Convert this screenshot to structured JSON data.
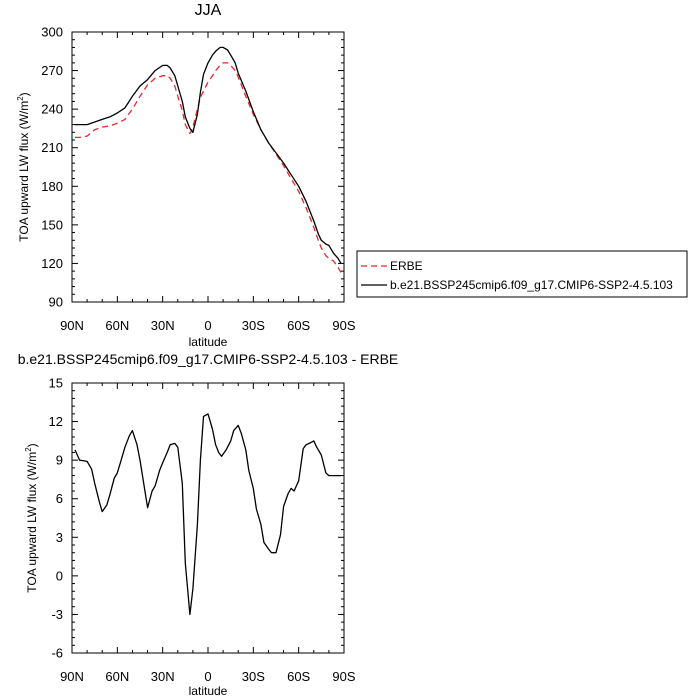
{
  "chart_data": [
    {
      "type": "line",
      "title": "JJA",
      "xlabel": "latitude",
      "ylabel_main": "TOA upward LW flux (W/m",
      "ylabel_sup": "2",
      "ylabel_close": ")",
      "xlim": [
        90,
        -90
      ],
      "ylim": [
        90,
        300
      ],
      "x_ticks": [
        90,
        60,
        30,
        0,
        -30,
        -60,
        -90
      ],
      "x_tick_labels": [
        "90N",
        "60N",
        "30N",
        "0",
        "30S",
        "60S",
        "90S"
      ],
      "y_ticks": [
        90,
        120,
        150,
        180,
        210,
        240,
        270,
        300
      ],
      "y_tick_labels": [
        "90",
        "120",
        "150",
        "180",
        "210",
        "240",
        "270",
        "300"
      ],
      "legend_position": "right",
      "series": [
        {
          "name": "ERBE",
          "color": "#e8272a",
          "dash": "dashed",
          "x": [
            88,
            85,
            80,
            75,
            70,
            65,
            60,
            55,
            50,
            45,
            40,
            35,
            30,
            27,
            25,
            22,
            20,
            17,
            15,
            12,
            10,
            7,
            5,
            3,
            0,
            -3,
            -5,
            -8,
            -10,
            -13,
            -15,
            -18,
            -20,
            -25,
            -30,
            -35,
            -40,
            -45,
            -50,
            -55,
            -60,
            -65,
            -70,
            -73,
            -75,
            -78,
            -80,
            -83,
            -86,
            -88
          ],
          "y": [
            218,
            218,
            219,
            224,
            226,
            227,
            229,
            232,
            240,
            250,
            259,
            264,
            266,
            266,
            264,
            258,
            250,
            239,
            228,
            221,
            226,
            240,
            249,
            254,
            261,
            266,
            270,
            274,
            276,
            276,
            274,
            270,
            265,
            250,
            236,
            224,
            214,
            205,
            196,
            186,
            176,
            163,
            148,
            138,
            132,
            126,
            124,
            122,
            117,
            113
          ]
        },
        {
          "name": "b.e21.BSSP245cmip6.f09_g17.CMIP6-SSP2-4.5.103",
          "color": "#000000",
          "dash": "solid",
          "x": [
            88,
            85,
            80,
            75,
            70,
            65,
            60,
            55,
            50,
            45,
            40,
            35,
            30,
            27,
            25,
            22,
            20,
            17,
            15,
            12,
            10,
            7,
            5,
            3,
            0,
            -3,
            -5,
            -8,
            -10,
            -13,
            -15,
            -18,
            -20,
            -25,
            -30,
            -35,
            -40,
            -45,
            -50,
            -55,
            -60,
            -65,
            -70,
            -73,
            -75,
            -78,
            -80,
            -83,
            -86,
            -88
          ],
          "y": [
            228,
            228,
            228,
            230,
            232,
            234,
            237,
            241,
            250,
            258,
            263,
            270,
            274,
            274,
            272,
            266,
            258,
            246,
            234,
            225,
            222,
            236,
            253,
            267,
            276,
            282,
            285,
            288,
            288,
            286,
            282,
            276,
            268,
            254,
            238,
            224,
            214,
            206,
            198,
            189,
            180,
            168,
            153,
            143,
            138,
            135,
            134,
            128,
            124,
            120
          ]
        }
      ]
    },
    {
      "type": "line",
      "title": "b.e21.BSSP245cmip6.f09_g17.CMIP6-SSP2-4.5.103 - ERBE",
      "xlabel": "latitude",
      "ylabel_main": "TOA upward LW flux (W/m",
      "ylabel_sup": "2",
      "ylabel_close": ")",
      "xlim": [
        90,
        -90
      ],
      "ylim": [
        -6,
        15
      ],
      "x_ticks": [
        90,
        60,
        30,
        0,
        -30,
        -60,
        -90
      ],
      "x_tick_labels": [
        "90N",
        "60N",
        "30N",
        "0",
        "30S",
        "60S",
        "90S"
      ],
      "y_ticks": [
        -6,
        -3,
        0,
        3,
        6,
        9,
        12,
        15
      ],
      "y_tick_labels": [
        "-6",
        "-3",
        "0",
        "3",
        "6",
        "9",
        "12",
        "15"
      ],
      "series": [
        {
          "color": "#000000",
          "dash": "solid",
          "x": [
            88,
            85,
            80,
            77,
            75,
            72,
            70,
            67,
            65,
            62,
            60,
            57,
            55,
            52,
            50,
            47,
            45,
            42,
            40,
            37,
            35,
            32,
            30,
            27,
            25,
            22,
            20,
            17,
            15,
            12,
            10,
            7,
            5,
            3,
            0,
            -3,
            -5,
            -7,
            -9,
            -12,
            -15,
            -17,
            -20,
            -22,
            -25,
            -27,
            -30,
            -32,
            -35,
            -37,
            -40,
            -42,
            -45,
            -48,
            -50,
            -53,
            -55,
            -57,
            -60,
            -63,
            -65,
            -67,
            -70,
            -72,
            -75,
            -78,
            -80,
            -82,
            -85,
            -88
          ],
          "y": [
            9.8,
            9.0,
            8.9,
            8.3,
            7.2,
            5.8,
            5.0,
            5.5,
            6.3,
            7.6,
            8.0,
            9.2,
            10.0,
            10.9,
            11.3,
            10.2,
            9.0,
            6.8,
            5.3,
            6.6,
            7.0,
            8.2,
            8.8,
            9.6,
            10.2,
            10.3,
            10.0,
            7.2,
            1.0,
            -3.0,
            -1.0,
            4.0,
            9.0,
            12.4,
            12.6,
            11.4,
            10.2,
            9.6,
            9.3,
            9.8,
            10.5,
            11.3,
            11.7,
            11.1,
            9.8,
            8.2,
            6.8,
            5.2,
            4.0,
            2.6,
            2.1,
            1.8,
            1.8,
            3.2,
            5.4,
            6.4,
            6.8,
            6.6,
            7.4,
            9.9,
            10.2,
            10.3,
            10.5,
            10.0,
            9.4,
            8.0,
            7.8,
            7.8,
            7.8,
            7.8
          ]
        }
      ]
    }
  ]
}
